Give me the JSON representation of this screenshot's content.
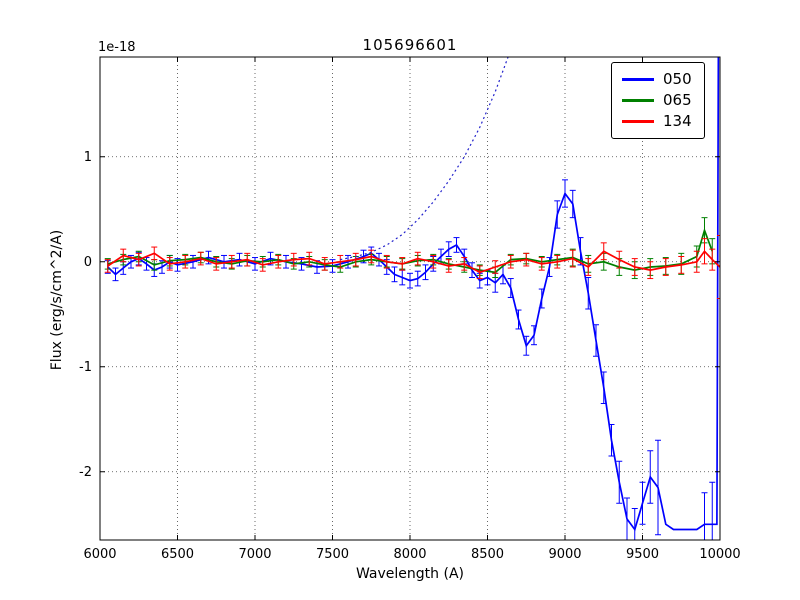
{
  "chart_data": {
    "type": "line",
    "title": "105696601",
    "xlabel": "Wavelength (A)",
    "ylabel": "Flux (erg/s/cm^2/A)",
    "offset_text": "1e-18",
    "xlim": [
      6000,
      10000
    ],
    "ylim": [
      -2.65,
      1.95
    ],
    "xticks": [
      6000,
      6500,
      7000,
      7500,
      8000,
      8500,
      9000,
      9500,
      10000
    ],
    "yticks": [
      -2,
      -1,
      0,
      1
    ],
    "grid": true,
    "legend": {
      "position": "upper right",
      "entries": [
        {
          "label": "050",
          "color": "#0000ff"
        },
        {
          "label": "065",
          "color": "#008000"
        },
        {
          "label": "134",
          "color": "#ff0000"
        }
      ]
    },
    "series": [
      {
        "name": "050",
        "color": "#0000ff",
        "style": "solid",
        "x": [
          6050,
          6100,
          6150,
          6200,
          6250,
          6300,
          6350,
          6400,
          6450,
          6500,
          6600,
          6700,
          6800,
          6900,
          7000,
          7100,
          7200,
          7300,
          7400,
          7500,
          7600,
          7700,
          7750,
          7800,
          7850,
          7900,
          7950,
          8000,
          8050,
          8100,
          8150,
          8200,
          8250,
          8300,
          8350,
          8400,
          8450,
          8500,
          8550,
          8600,
          8650,
          8700,
          8750,
          8800,
          8850,
          8900,
          8950,
          9000,
          9050,
          9100,
          9150,
          9200,
          9250,
          9300,
          9350,
          9400,
          9450,
          9500,
          9550,
          9600,
          9650,
          9700,
          9750,
          9800,
          9850,
          9900,
          9950,
          9980,
          9990,
          10000
        ],
        "y": [
          -0.05,
          -0.12,
          -0.06,
          0.0,
          0.03,
          -0.02,
          -0.08,
          -0.05,
          0.0,
          -0.03,
          0.0,
          0.04,
          0.0,
          0.02,
          -0.02,
          0.03,
          0.0,
          -0.02,
          -0.05,
          -0.04,
          0.0,
          0.05,
          0.08,
          0.02,
          -0.05,
          -0.12,
          -0.15,
          -0.18,
          -0.16,
          -0.1,
          -0.02,
          0.05,
          0.12,
          0.16,
          0.05,
          -0.08,
          -0.18,
          -0.15,
          -0.2,
          -0.12,
          -0.25,
          -0.55,
          -0.8,
          -0.7,
          -0.35,
          -0.05,
          0.45,
          0.65,
          0.55,
          0.1,
          -0.3,
          -0.75,
          -1.2,
          -1.7,
          -2.1,
          -2.45,
          -2.55,
          -2.3,
          -2.05,
          -2.15,
          -2.5,
          -2.55,
          -2.55,
          -2.55,
          -2.55,
          -2.5,
          -2.5,
          -2.5,
          2.4,
          2.4
        ],
        "yerr": [
          0.06,
          0.06,
          0.06,
          0.06,
          0.06,
          0.06,
          0.06,
          0.06,
          0.06,
          0.06,
          0.06,
          0.06,
          0.06,
          0.06,
          0.06,
          0.06,
          0.06,
          0.06,
          0.06,
          0.06,
          0.06,
          0.06,
          0.06,
          0.06,
          0.07,
          0.07,
          0.07,
          0.07,
          0.07,
          0.07,
          0.07,
          0.07,
          0.07,
          0.07,
          0.07,
          0.07,
          0.07,
          0.07,
          0.09,
          0.09,
          0.09,
          0.09,
          0.09,
          0.09,
          0.09,
          0.09,
          0.13,
          0.13,
          0.13,
          0.13,
          0.15,
          0.15,
          0.15,
          0.15,
          0.2,
          0.2,
          0.2,
          0.2,
          0.25,
          0.45,
          0,
          0,
          0,
          0,
          0,
          0.3,
          0.4,
          0,
          0,
          0
        ]
      },
      {
        "name": "065",
        "color": "#008000",
        "style": "solid",
        "x": [
          6050,
          6150,
          6250,
          6350,
          6450,
          6550,
          6650,
          6750,
          6850,
          6950,
          7050,
          7150,
          7250,
          7350,
          7450,
          7550,
          7650,
          7750,
          7850,
          7950,
          8050,
          8150,
          8250,
          8350,
          8450,
          8550,
          8650,
          8750,
          8850,
          8950,
          9050,
          9150,
          9250,
          9350,
          9450,
          9550,
          9650,
          9750,
          9850,
          9900,
          9950
        ],
        "y": [
          -0.02,
          0.02,
          0.05,
          -0.03,
          0.01,
          0.02,
          0.04,
          0.0,
          -0.02,
          0.01,
          0.0,
          0.02,
          -0.02,
          0.0,
          -0.03,
          -0.05,
          0.0,
          0.02,
          0.0,
          -0.02,
          0.01,
          0.02,
          -0.02,
          -0.05,
          -0.08,
          -0.1,
          0.02,
          0.03,
          0.0,
          0.02,
          0.04,
          -0.02,
          0.0,
          -0.05,
          -0.08,
          -0.05,
          -0.04,
          -0.02,
          0.05,
          0.3,
          0.1
        ],
        "yerr": [
          0.05,
          0.05,
          0.05,
          0.05,
          0.05,
          0.05,
          0.05,
          0.05,
          0.05,
          0.05,
          0.05,
          0.05,
          0.05,
          0.05,
          0.05,
          0.05,
          0.05,
          0.05,
          0.05,
          0.05,
          0.05,
          0.05,
          0.05,
          0.05,
          0.05,
          0.05,
          0.05,
          0.05,
          0.05,
          0.05,
          0.08,
          0.08,
          0.08,
          0.08,
          0.08,
          0.08,
          0.08,
          0.1,
          0.1,
          0.12,
          0.12
        ]
      },
      {
        "name": "134",
        "color": "#ff0000",
        "style": "solid",
        "x": [
          6050,
          6150,
          6250,
          6350,
          6450,
          6550,
          6650,
          6750,
          6850,
          6950,
          7050,
          7150,
          7250,
          7350,
          7450,
          7550,
          7650,
          7750,
          7850,
          7950,
          8050,
          8150,
          8250,
          8350,
          8450,
          8550,
          8650,
          8750,
          8850,
          8950,
          9050,
          9150,
          9250,
          9350,
          9450,
          9550,
          9650,
          9750,
          9850,
          9900,
          9950,
          10000
        ],
        "y": [
          -0.04,
          0.06,
          0.02,
          0.08,
          -0.02,
          0.0,
          0.03,
          -0.02,
          0.0,
          0.02,
          -0.03,
          0.0,
          0.02,
          0.03,
          -0.02,
          0.0,
          0.02,
          0.05,
          0.0,
          -0.02,
          0.03,
          0.0,
          -0.04,
          -0.02,
          -0.1,
          -0.05,
          0.0,
          0.02,
          -0.02,
          0.0,
          0.03,
          -0.05,
          0.1,
          0.02,
          -0.05,
          -0.08,
          -0.05,
          -0.03,
          0.0,
          0.1,
          0.02,
          -0.05
        ],
        "yerr": [
          0.06,
          0.06,
          0.06,
          0.06,
          0.06,
          0.06,
          0.06,
          0.06,
          0.06,
          0.06,
          0.06,
          0.06,
          0.06,
          0.06,
          0.06,
          0.06,
          0.06,
          0.06,
          0.06,
          0.06,
          0.06,
          0.06,
          0.06,
          0.06,
          0.06,
          0.06,
          0.06,
          0.06,
          0.06,
          0.06,
          0.08,
          0.08,
          0.08,
          0.08,
          0.08,
          0.08,
          0.08,
          0.08,
          0.1,
          0.12,
          0.1,
          0.3
        ]
      },
      {
        "name": "050_dotted_model",
        "color": "#2222cc",
        "style": "dotted",
        "x": [
          7550,
          7650,
          7750,
          7850,
          7950,
          8050,
          8150,
          8250,
          8350,
          8450,
          8550,
          8650,
          8750
        ],
        "y": [
          0.02,
          0.05,
          0.09,
          0.16,
          0.26,
          0.4,
          0.57,
          0.77,
          1.0,
          1.28,
          1.62,
          2.02,
          2.5
        ],
        "yerr": [
          0,
          0,
          0,
          0,
          0,
          0,
          0,
          0,
          0,
          0,
          0,
          0,
          0
        ]
      }
    ]
  }
}
